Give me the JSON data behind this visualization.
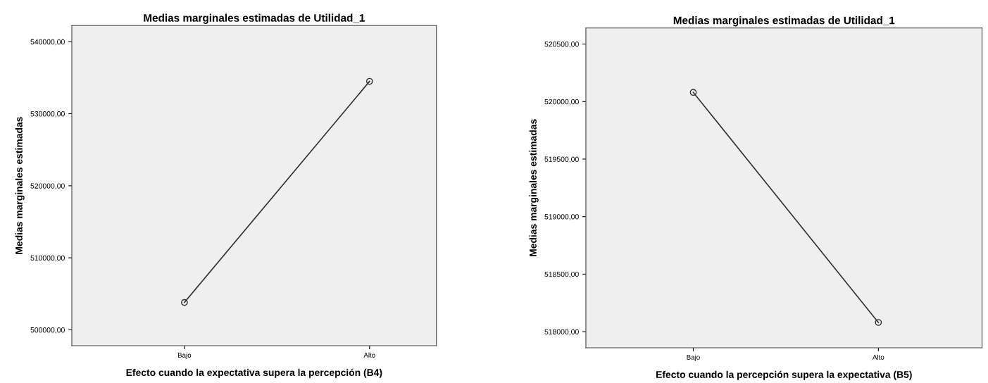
{
  "chart_data": [
    {
      "type": "line",
      "title": "Medias marginales estimadas de Utilidad_1",
      "xlabel": "Efecto cuando la expectativa supera la percepción (B4)",
      "ylabel": "Medias marginales estimadas",
      "categories": [
        "Bajo",
        "Alto"
      ],
      "series": [
        {
          "color": "#333333",
          "values": [
            503800,
            534500
          ]
        }
      ],
      "marker": "circle",
      "line_style": "solid",
      "grid": false,
      "ylim": [
        497800,
        542250
      ],
      "yticks": [
        {
          "value": 500000,
          "label": "500000,00"
        },
        {
          "value": 510000,
          "label": "510000,00"
        },
        {
          "value": 520000,
          "label": "520000,00"
        },
        {
          "value": 530000,
          "label": "530000,00"
        },
        {
          "value": 540000,
          "label": "540000,00"
        }
      ]
    },
    {
      "type": "line",
      "title": "Medias marginales estimadas de Utilidad_1",
      "xlabel": "Efecto cuando la percepción supera la expectativa (B5)",
      "ylabel": "Medias marginales estimadas",
      "categories": [
        "Bajo",
        "Alto"
      ],
      "series": [
        {
          "color": "#333333",
          "values": [
            520080,
            518080
          ]
        }
      ],
      "marker": "circle",
      "line_style": "solid",
      "grid": false,
      "ylim": [
        517860,
        520640
      ],
      "yticks": [
        {
          "value": 518000,
          "label": "518000,00"
        },
        {
          "value": 518500,
          "label": "518500,00"
        },
        {
          "value": 519000,
          "label": "519000,00"
        },
        {
          "value": 519500,
          "label": "519500,00"
        },
        {
          "value": 520000,
          "label": "520000,00"
        },
        {
          "value": 520500,
          "label": "520500,00"
        }
      ]
    }
  ]
}
